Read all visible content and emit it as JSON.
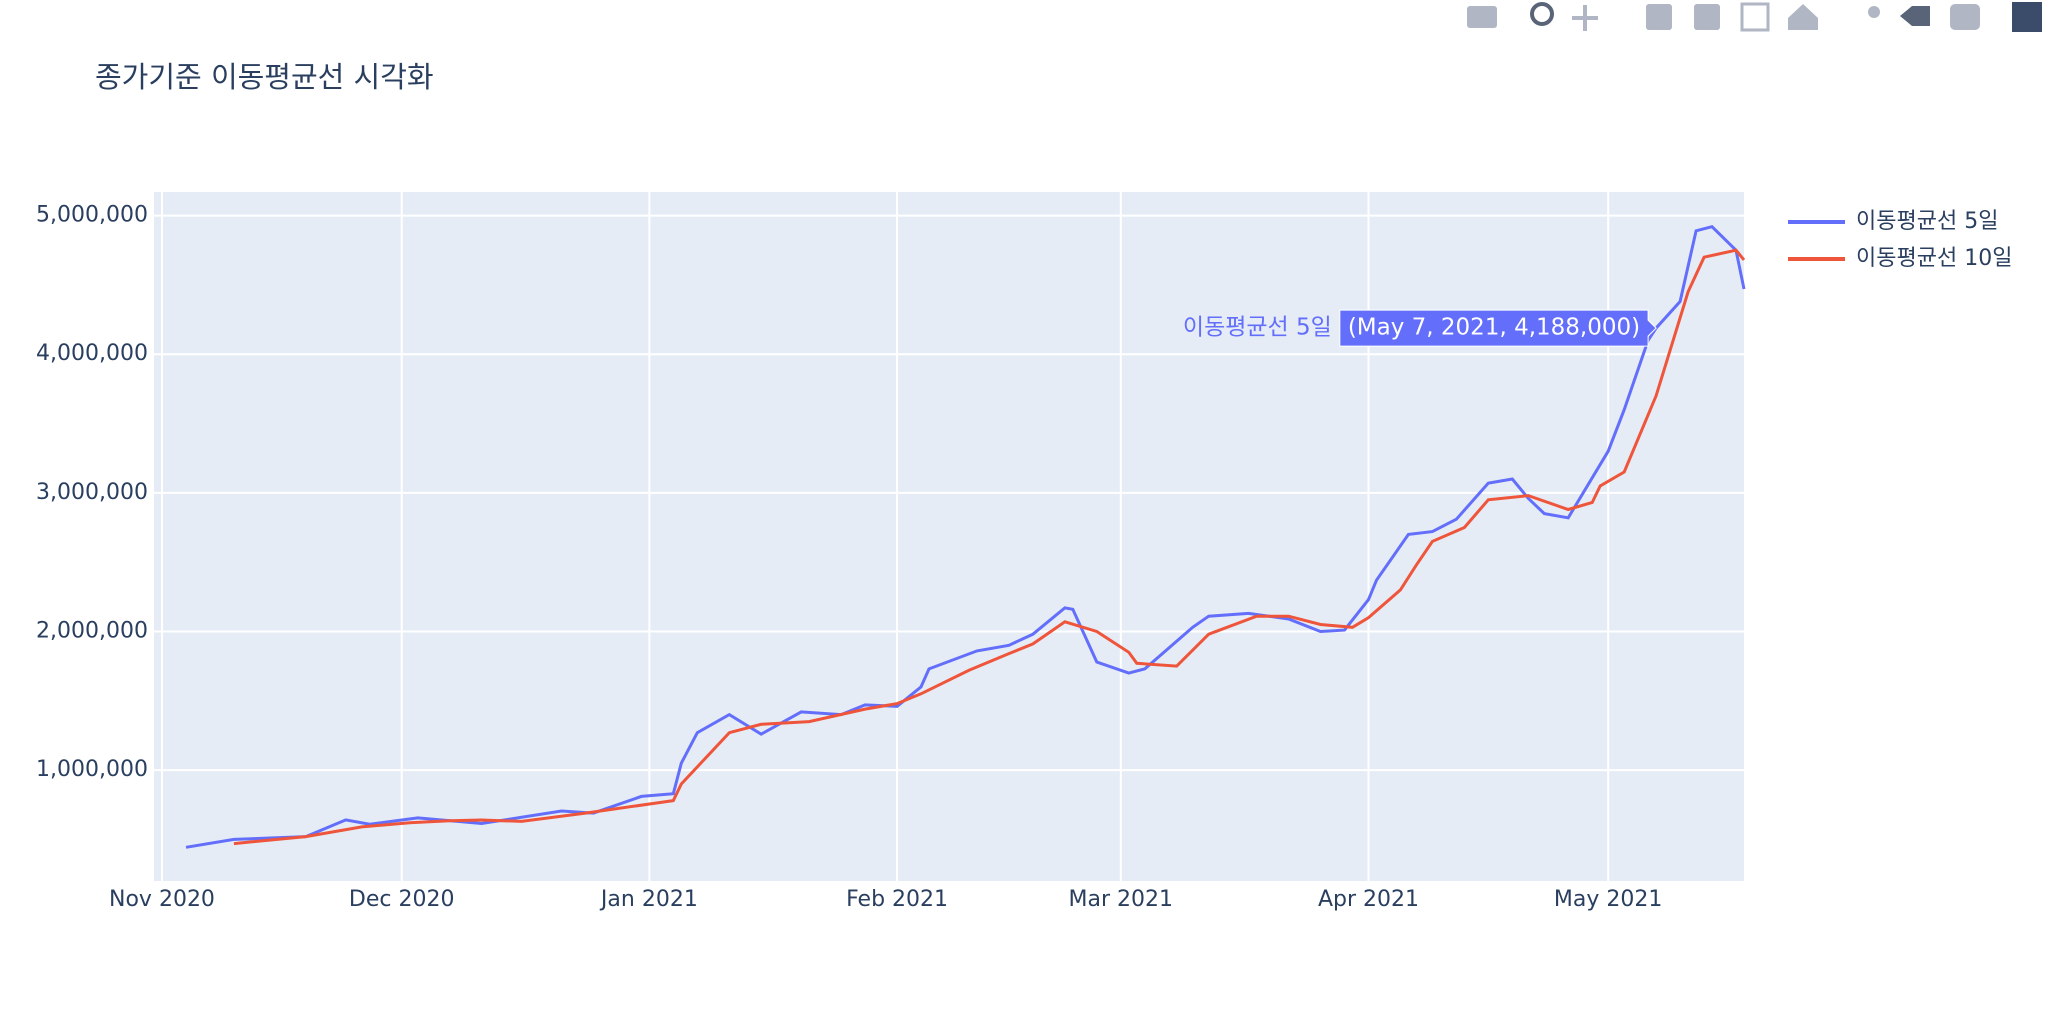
{
  "chart_data": {
    "type": "line",
    "title": "종가기준 이동평균선 시각화",
    "xlim": [
      "2020-10-31",
      "2021-05-18"
    ],
    "ylim": [
      200000,
      5170000
    ],
    "xticks": [
      {
        "value": "2020-11-01",
        "label": "Nov 2020"
      },
      {
        "value": "2020-12-01",
        "label": "Dec 2020"
      },
      {
        "value": "2021-01-01",
        "label": "Jan 2021"
      },
      {
        "value": "2021-02-01",
        "label": "Feb 2021"
      },
      {
        "value": "2021-03-01",
        "label": "Mar 2021"
      },
      {
        "value": "2021-04-01",
        "label": "Apr 2021"
      },
      {
        "value": "2021-05-01",
        "label": "May 2021"
      }
    ],
    "yticks": [
      {
        "value": 1000000,
        "label": "1,000,000"
      },
      {
        "value": 2000000,
        "label": "2,000,000"
      },
      {
        "value": 3000000,
        "label": "3,000,000"
      },
      {
        "value": 4000000,
        "label": "4,000,000"
      },
      {
        "value": 5000000,
        "label": "5,000,000"
      }
    ],
    "grid": true,
    "series": [
      {
        "name": "이동평균선 5일",
        "color": "#636efa",
        "x": [
          "2020-11-04",
          "2020-11-10",
          "2020-11-19",
          "2020-11-24",
          "2020-11-27",
          "2020-12-03",
          "2020-12-11",
          "2020-12-21",
          "2020-12-25",
          "2020-12-31",
          "2021-01-04",
          "2021-01-05",
          "2021-01-07",
          "2021-01-11",
          "2021-01-15",
          "2021-01-20",
          "2021-01-25",
          "2021-01-28",
          "2021-02-01",
          "2021-02-04",
          "2021-02-05",
          "2021-02-11",
          "2021-02-15",
          "2021-02-18",
          "2021-02-22",
          "2021-02-23",
          "2021-02-26",
          "2021-03-02",
          "2021-03-04",
          "2021-03-10",
          "2021-03-12",
          "2021-03-17",
          "2021-03-22",
          "2021-03-26",
          "2021-03-29",
          "2021-04-01",
          "2021-04-02",
          "2021-04-06",
          "2021-04-09",
          "2021-04-12",
          "2021-04-16",
          "2021-04-19",
          "2021-04-21",
          "2021-04-23",
          "2021-04-26",
          "2021-05-01",
          "2021-05-03",
          "2021-05-06",
          "2021-05-07",
          "2021-05-10",
          "2021-05-12",
          "2021-05-14",
          "2021-05-17",
          "2021-05-18"
        ],
        "values": [
          443000,
          500000,
          520000,
          641000,
          610000,
          655000,
          615000,
          705000,
          690000,
          810000,
          830000,
          1050000,
          1270000,
          1400000,
          1260000,
          1420000,
          1400000,
          1470000,
          1460000,
          1600000,
          1730000,
          1860000,
          1900000,
          1980000,
          2170000,
          2160000,
          1780000,
          1700000,
          1730000,
          2030000,
          2110000,
          2130000,
          2090000,
          2000000,
          2010000,
          2230000,
          2370000,
          2700000,
          2720000,
          2810000,
          3070000,
          3100000,
          2960000,
          2850000,
          2820000,
          3300000,
          3600000,
          4100000,
          4188000,
          4380000,
          4890000,
          4920000,
          4750000,
          4470000
        ]
      },
      {
        "name": "이동평균선 10일",
        "color": "#EF553B",
        "x": [
          "2020-11-10",
          "2020-11-19",
          "2020-11-26",
          "2020-12-02",
          "2020-12-07",
          "2020-12-11",
          "2020-12-16",
          "2020-12-24",
          "2021-01-04",
          "2021-01-05",
          "2021-01-11",
          "2021-01-15",
          "2021-01-21",
          "2021-01-28",
          "2021-02-01",
          "2021-02-04",
          "2021-02-10",
          "2021-02-15",
          "2021-02-18",
          "2021-02-22",
          "2021-02-26",
          "2021-03-02",
          "2021-03-03",
          "2021-03-08",
          "2021-03-12",
          "2021-03-18",
          "2021-03-22",
          "2021-03-26",
          "2021-03-30",
          "2021-04-01",
          "2021-04-05",
          "2021-04-07",
          "2021-04-09",
          "2021-04-13",
          "2021-04-16",
          "2021-04-21",
          "2021-04-26",
          "2021-04-29",
          "2021-04-30",
          "2021-05-03",
          "2021-05-07",
          "2021-05-11",
          "2021-05-13",
          "2021-05-17",
          "2021-05-18"
        ],
        "values": [
          470000,
          520000,
          590000,
          620000,
          635000,
          640000,
          630000,
          690000,
          780000,
          900000,
          1270000,
          1330000,
          1350000,
          1440000,
          1480000,
          1550000,
          1720000,
          1840000,
          1910000,
          2070000,
          2000000,
          1850000,
          1770000,
          1750000,
          1980000,
          2110000,
          2110000,
          2050000,
          2030000,
          2100000,
          2300000,
          2480000,
          2650000,
          2750000,
          2950000,
          2980000,
          2880000,
          2930000,
          3050000,
          3150000,
          3700000,
          4450000,
          4700000,
          4750000,
          4680000
        ]
      }
    ],
    "hover": {
      "name": "이동평균선 5일",
      "text": "(May 7, 2021, 4,188,000)"
    }
  }
}
